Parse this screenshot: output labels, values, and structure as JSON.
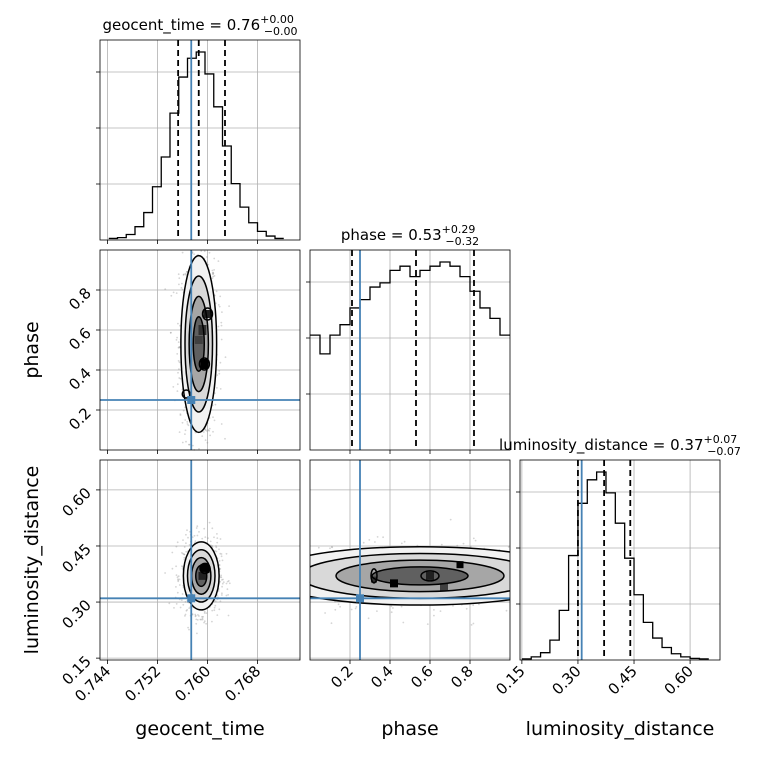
{
  "chart_data": {
    "type": "corner",
    "parameters": [
      "geocent_time",
      "phase",
      "luminosity_distance"
    ],
    "injection": {
      "geocent_time": 0.7574,
      "phase": 0.25,
      "luminosity_distance": 0.31
    },
    "titles": {
      "geocent_time": {
        "name": "geocent_time",
        "median": "0.76",
        "plus": "+0.00",
        "minus": "−0.00"
      },
      "phase": {
        "name": "phase",
        "median": "0.53",
        "plus": "+0.29",
        "minus": "−0.32"
      },
      "luminosity_distance": {
        "name": "luminosity_distance",
        "median": "0.37",
        "plus": "+0.07",
        "minus": "−0.07"
      }
    },
    "axis_labels": {
      "geocent_time": "geocent_time",
      "phase": "phase",
      "luminosity_distance": "luminosity_distance"
    },
    "ranges": {
      "geocent_time": [
        0.7428,
        0.7748
      ],
      "phase": [
        0.0,
        1.0
      ],
      "luminosity_distance": [
        0.145,
        0.68
      ]
    },
    "ticks": {
      "geocent_time": [
        0.744,
        0.752,
        0.76,
        0.768
      ],
      "phase_x": [
        0.2,
        0.4,
        0.6,
        0.8
      ],
      "phase_y": [
        0.2,
        0.4,
        0.6,
        0.8
      ],
      "luminosity_distance": [
        0.15,
        0.3,
        0.45,
        0.6
      ]
    },
    "tick_labels": {
      "geocent_time": [
        "0.744",
        "0.752",
        "0.760",
        "0.768"
      ],
      "phase_x": [
        "0.2",
        "0.4",
        "0.6",
        "0.8"
      ],
      "phase_y": [
        "0.2",
        "0.4",
        "0.6",
        "0.8"
      ],
      "luminosity_distance": [
        "0.15",
        "0.30",
        "0.45",
        "0.60"
      ]
    },
    "quantiles": {
      "geocent_time": [
        0.7553,
        0.7586,
        0.7628
      ],
      "phase": [
        0.21,
        0.53,
        0.82
      ],
      "luminosity_distance": [
        0.3,
        0.37,
        0.44
      ]
    },
    "histograms": {
      "geocent_time": {
        "edges": [
          0.7442,
          0.7456,
          0.747,
          0.7484,
          0.7498,
          0.7512,
          0.7526,
          0.754,
          0.7554,
          0.7568,
          0.7582,
          0.7596,
          0.761,
          0.7624,
          0.7638,
          0.7652,
          0.7666,
          0.768,
          0.7694,
          0.7708,
          0.7722
        ],
        "counts": [
          2,
          3,
          7,
          17,
          35,
          68,
          106,
          162,
          208,
          232,
          240,
          212,
          170,
          120,
          72,
          42,
          22,
          11,
          5,
          2
        ]
      },
      "phase": {
        "edges": [
          0.0,
          0.05,
          0.1,
          0.15,
          0.2,
          0.25,
          0.3,
          0.35,
          0.4,
          0.45,
          0.5,
          0.55,
          0.6,
          0.65,
          0.7,
          0.75,
          0.8,
          0.85,
          0.9,
          0.95,
          1.0
        ],
        "counts": [
          0.55,
          0.46,
          0.55,
          0.6,
          0.68,
          0.72,
          0.78,
          0.8,
          0.86,
          0.88,
          0.83,
          0.86,
          0.88,
          0.9,
          0.88,
          0.83,
          0.76,
          0.68,
          0.63,
          0.55
        ]
      },
      "luminosity_distance": {
        "edges": [
          0.15,
          0.175,
          0.2,
          0.225,
          0.25,
          0.275,
          0.3,
          0.325,
          0.35,
          0.375,
          0.4,
          0.425,
          0.45,
          0.475,
          0.5,
          0.525,
          0.55,
          0.575,
          0.6,
          0.625,
          0.65
        ],
        "counts": [
          2,
          6,
          14,
          38,
          95,
          200,
          300,
          345,
          360,
          320,
          262,
          195,
          125,
          72,
          42,
          24,
          12,
          6,
          3,
          2
        ]
      }
    },
    "grid": true
  }
}
